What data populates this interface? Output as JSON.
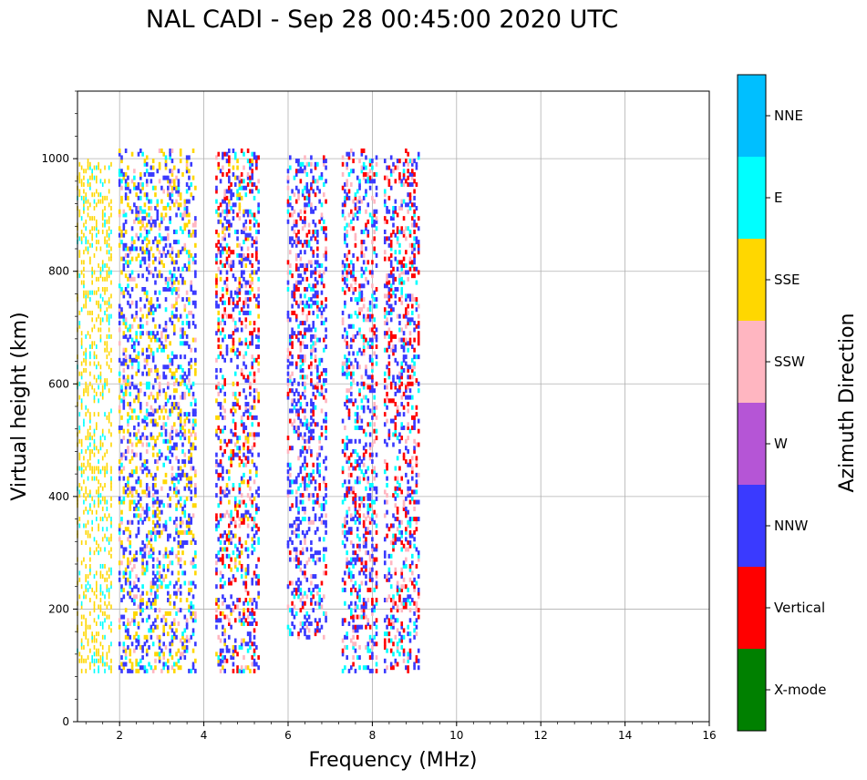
{
  "chart_data": {
    "type": "scatter",
    "title": "NAL CADI - Sep 28 00:45:00 2020 UTC",
    "xlabel": "Frequency (MHz)",
    "ylabel": "Virtual height (km)",
    "xlim": [
      1,
      16
    ],
    "ylim": [
      0,
      1120
    ],
    "xticks": [
      2,
      4,
      6,
      8,
      10,
      12,
      14,
      16
    ],
    "yticks": [
      0,
      200,
      400,
      600,
      800,
      1000
    ],
    "grid": true,
    "colorbar": {
      "label": "Azimuth Direction",
      "categories": [
        "X-mode",
        "Vertical",
        "NNW",
        "W",
        "SSW",
        "SSE",
        "E",
        "NNE"
      ],
      "colors": [
        "#008000",
        "#ff0000",
        "#3a3aff",
        "#b555d6",
        "#ffb6c1",
        "#ffd700",
        "#00ffff",
        "#00bfff"
      ]
    },
    "frequency_bands": [
      {
        "f_min": 1.0,
        "f_max": 1.8,
        "h_min": 90,
        "h_max": 1000,
        "azimuths": [
          "SSE",
          "SSE",
          "SSE",
          "E"
        ]
      },
      {
        "f_min": 2.0,
        "f_max": 3.8,
        "h_min": 90,
        "h_max": 1015,
        "azimuths": [
          "NNW",
          "NNW",
          "NNW",
          "SSE",
          "SSE",
          "SSW",
          "E"
        ]
      },
      {
        "f_min": 4.3,
        "f_max": 5.3,
        "h_min": 90,
        "h_max": 1015,
        "azimuths": [
          "NNW",
          "NNW",
          "NNW",
          "Vertical",
          "Vertical",
          "SSW",
          "E",
          "SSE"
        ]
      },
      {
        "f_min": 6.0,
        "f_max": 6.9,
        "h_min": 150,
        "h_max": 1005,
        "azimuths": [
          "NNW",
          "NNW",
          "NNW",
          "Vertical",
          "E",
          "SSW"
        ]
      },
      {
        "f_min": 7.3,
        "f_max": 8.1,
        "h_min": 90,
        "h_max": 1015,
        "azimuths": [
          "NNW",
          "NNW",
          "Vertical",
          "SSW",
          "E"
        ]
      },
      {
        "f_min": 8.3,
        "f_max": 9.1,
        "h_min": 90,
        "h_max": 1015,
        "azimuths": [
          "NNW",
          "NNW",
          "Vertical",
          "Vertical",
          "SSW",
          "E"
        ]
      }
    ]
  }
}
